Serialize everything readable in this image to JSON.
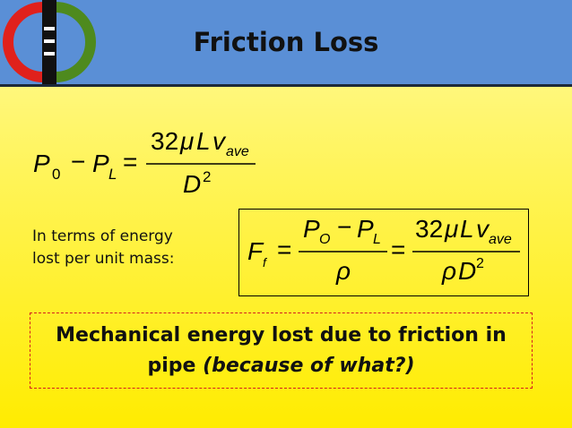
{
  "slide": {
    "title": "Friction Loss",
    "colors": {
      "header_bg": "#5a8fd6",
      "logo_red": "#e0211c",
      "logo_green": "#4e8a1e",
      "logo_black": "#111111",
      "callout_border": "#d51f1f"
    }
  },
  "logo": {
    "icon": "cycle-logo-icon"
  },
  "equation1": {
    "p": "P",
    "sub0": "0",
    "minus": "−",
    "pl": "P",
    "subL": "L",
    "equals": "=",
    "num_coef": "32",
    "mu": "μ",
    "num_L": "L",
    "num_v": "v",
    "sub_ave": "ave",
    "den_D": "D",
    "den_sup2": "2"
  },
  "energy_note": {
    "line1": "In terms of energy",
    "line2": "lost per unit mass:"
  },
  "equation2": {
    "F": "F",
    "sub_f": "f",
    "equals": "=",
    "num_P": "P",
    "sub_O": "O",
    "minus": "−",
    "num_P2": "P",
    "sub_L": "L",
    "rho": "ρ",
    "equals2": "=",
    "coef": "32",
    "mu": "μ",
    "L": "L",
    "v": "v",
    "sub_ave": "ave",
    "rho2": "ρ",
    "D": "D",
    "sup2": "2"
  },
  "callout": {
    "line1": "Mechanical energy lost due to friction in",
    "line2_main": "pipe ",
    "line2_emph": "(because of what?)"
  }
}
